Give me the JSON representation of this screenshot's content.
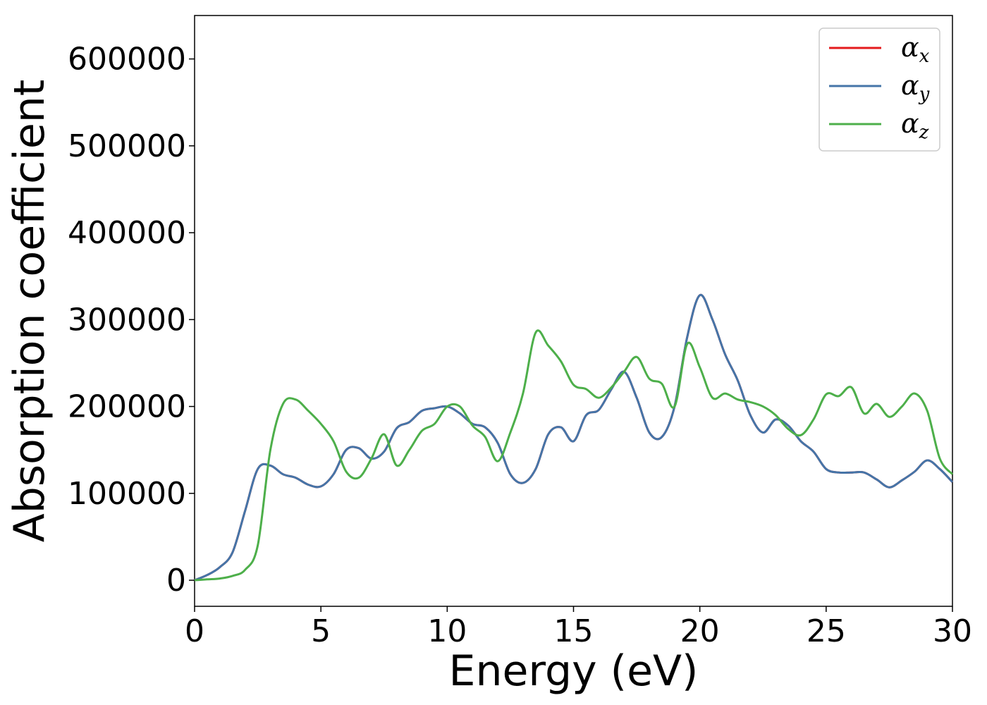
{
  "chart_data": {
    "type": "line",
    "title": "",
    "xlabel": "Energy (eV)",
    "ylabel": "Absorption coefficient",
    "xlim": [
      0,
      30
    ],
    "ylim": [
      -30000,
      650000
    ],
    "xticks": [
      0,
      5,
      10,
      15,
      20,
      25,
      30
    ],
    "yticks": [
      0,
      100000,
      200000,
      300000,
      400000,
      500000,
      600000
    ],
    "grid": false,
    "legend_position": "top-right",
    "x": [
      0,
      0.5,
      1,
      1.5,
      2,
      2.5,
      3,
      3.5,
      4,
      4.5,
      5,
      5.5,
      6,
      6.5,
      7,
      7.5,
      8,
      8.5,
      9,
      9.5,
      10,
      10.5,
      11,
      11.5,
      12,
      12.5,
      13,
      13.5,
      14,
      14.5,
      15,
      15.5,
      16,
      16.5,
      17,
      17.5,
      18,
      18.5,
      19,
      19.5,
      20,
      20.5,
      21,
      21.5,
      22,
      22.5,
      23,
      23.5,
      24,
      24.5,
      25,
      25.5,
      26,
      26.5,
      27,
      27.5,
      28,
      28.5,
      29,
      29.5,
      30
    ],
    "series": [
      {
        "name": "α_x",
        "label_main": "α",
        "label_sub": "x",
        "color": "#e41a1c",
        "values": [
          0,
          6000,
          15000,
          32000,
          80000,
          128000,
          132000,
          122000,
          118000,
          110000,
          108000,
          122000,
          150000,
          152000,
          140000,
          148000,
          175000,
          182000,
          195000,
          198000,
          200000,
          192000,
          180000,
          176000,
          158000,
          122000,
          112000,
          128000,
          168000,
          176000,
          160000,
          190000,
          196000,
          220000,
          240000,
          210000,
          170000,
          165000,
          200000,
          280000,
          328000,
          300000,
          260000,
          230000,
          190000,
          170000,
          185000,
          178000,
          160000,
          148000,
          128000,
          124000,
          124000,
          124000,
          116000,
          107000,
          115000,
          125000,
          138000,
          128000,
          113000
        ]
      },
      {
        "name": "α_y",
        "label_main": "α",
        "label_sub": "y",
        "color": "#4575a8",
        "values": [
          0,
          6000,
          15000,
          32000,
          80000,
          128000,
          132000,
          122000,
          118000,
          110000,
          108000,
          122000,
          150000,
          152000,
          140000,
          148000,
          175000,
          182000,
          195000,
          198000,
          200000,
          192000,
          180000,
          176000,
          158000,
          122000,
          112000,
          128000,
          168000,
          176000,
          160000,
          190000,
          196000,
          220000,
          240000,
          210000,
          170000,
          165000,
          200000,
          280000,
          328000,
          300000,
          260000,
          230000,
          190000,
          170000,
          185000,
          178000,
          160000,
          148000,
          128000,
          124000,
          124000,
          124000,
          116000,
          107000,
          115000,
          125000,
          138000,
          128000,
          113000
        ]
      },
      {
        "name": "α_z",
        "label_main": "α",
        "label_sub": "z",
        "color": "#4daf4a",
        "values": [
          0,
          1000,
          2000,
          5000,
          12000,
          40000,
          150000,
          203000,
          208000,
          195000,
          180000,
          160000,
          125000,
          118000,
          140000,
          168000,
          132000,
          150000,
          172000,
          180000,
          200000,
          200000,
          178000,
          165000,
          137000,
          170000,
          215000,
          285000,
          270000,
          252000,
          225000,
          220000,
          210000,
          222000,
          240000,
          257000,
          232000,
          226000,
          200000,
          272000,
          245000,
          210000,
          215000,
          208000,
          205000,
          200000,
          190000,
          174000,
          167000,
          185000,
          214000,
          212000,
          222000,
          192000,
          203000,
          188000,
          200000,
          215000,
          195000,
          140000,
          122000
        ]
      }
    ]
  }
}
